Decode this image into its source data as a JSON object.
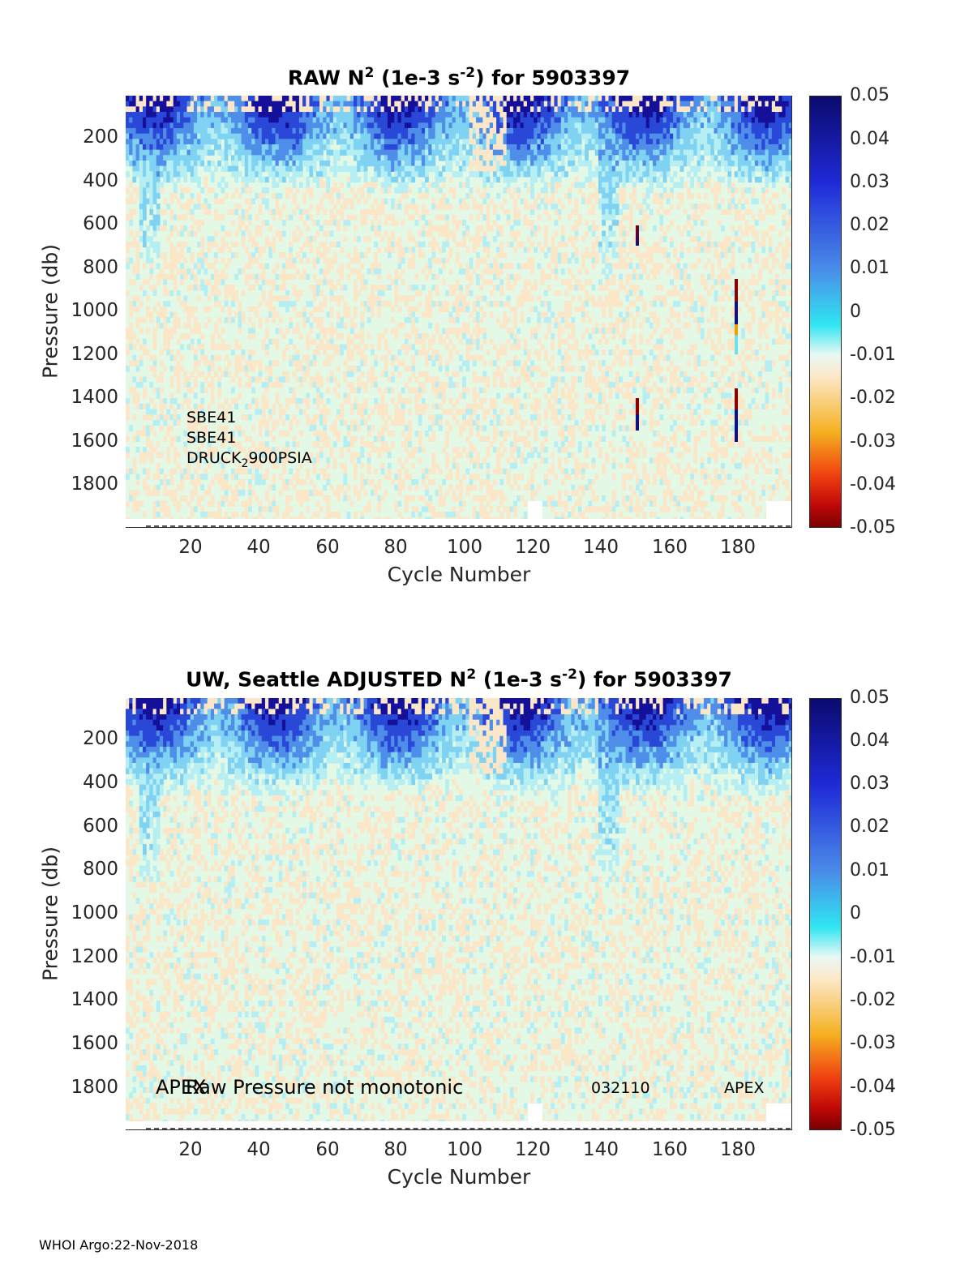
{
  "chart_data": [
    {
      "type": "heatmap",
      "title": "RAW N² (1e-3 s⁻²) for 5903397",
      "title_parts": {
        "prefix": "RAW N",
        "exp1": "2",
        "mid": " (1e-3 s",
        "exp2": "-2",
        "suffix": ") for 5903397"
      },
      "xlabel": "Cycle Number",
      "ylabel": "Pressure (db)",
      "x_ticks": [
        "20",
        "40",
        "60",
        "80",
        "100",
        "120",
        "140",
        "160",
        "180"
      ],
      "y_ticks": [
        "200",
        "400",
        "600",
        "800",
        "1000",
        "1200",
        "1400",
        "1600",
        "1800"
      ],
      "xlim": [
        1,
        196
      ],
      "ylim": [
        2000,
        0
      ],
      "colorbar": {
        "min": -0.05,
        "max": 0.05,
        "ticks": [
          "0.05",
          "0.04",
          "0.03",
          "0.02",
          "0.01",
          "0",
          "-0.01",
          "-0.02",
          "-0.03",
          "-0.04",
          "-0.05"
        ]
      },
      "annotations": {
        "line1": "SBE41",
        "line2": "SBE41",
        "line3_a": "DRUCK",
        "line3_sub": "2",
        "line3_b": "900PSIA"
      },
      "approx_pattern": "strong positive N2 (0.03–0.05) in upper 100–300 db, weaker positive values (~0.005–0.01) to 600–900 db near cycles 5–10 and 140–145, near-zero elsewhere; isolated spikes near cycles 150 and 179"
    },
    {
      "type": "heatmap",
      "title": "UW, Seattle ADJUSTED N² (1e-3 s⁻²) for 5903397",
      "title_parts": {
        "prefix": "UW, Seattle  ADJUSTED N",
        "exp1": "2",
        "mid": " (1e-3 s",
        "exp2": "-2",
        "suffix": ") for 5903397"
      },
      "xlabel": "Cycle Number",
      "ylabel": "Pressure (db)",
      "x_ticks": [
        "20",
        "40",
        "60",
        "80",
        "100",
        "120",
        "140",
        "160",
        "180"
      ],
      "y_ticks": [
        "200",
        "400",
        "600",
        "800",
        "1000",
        "1200",
        "1400",
        "1600",
        "1800"
      ],
      "xlim": [
        1,
        196
      ],
      "ylim": [
        2000,
        0
      ],
      "colorbar": {
        "min": -0.05,
        "max": 0.05,
        "ticks": [
          "0.05",
          "0.04",
          "0.03",
          "0.02",
          "0.01",
          "0",
          "-0.01",
          "-0.02",
          "-0.03",
          "-0.04",
          "-0.05"
        ]
      },
      "annotations": {
        "apex_left": "APEX",
        "raw_pressure": "Raw Pressure not monotonic",
        "code": "032110",
        "apex_right": "APEX"
      }
    }
  ],
  "footer": "WHOI Argo:22-Nov-2018",
  "colors": {
    "background_field": "#e4f8e6",
    "strong_positive": "#0b0a6e",
    "near_zero_warm": "#fce8c8"
  }
}
